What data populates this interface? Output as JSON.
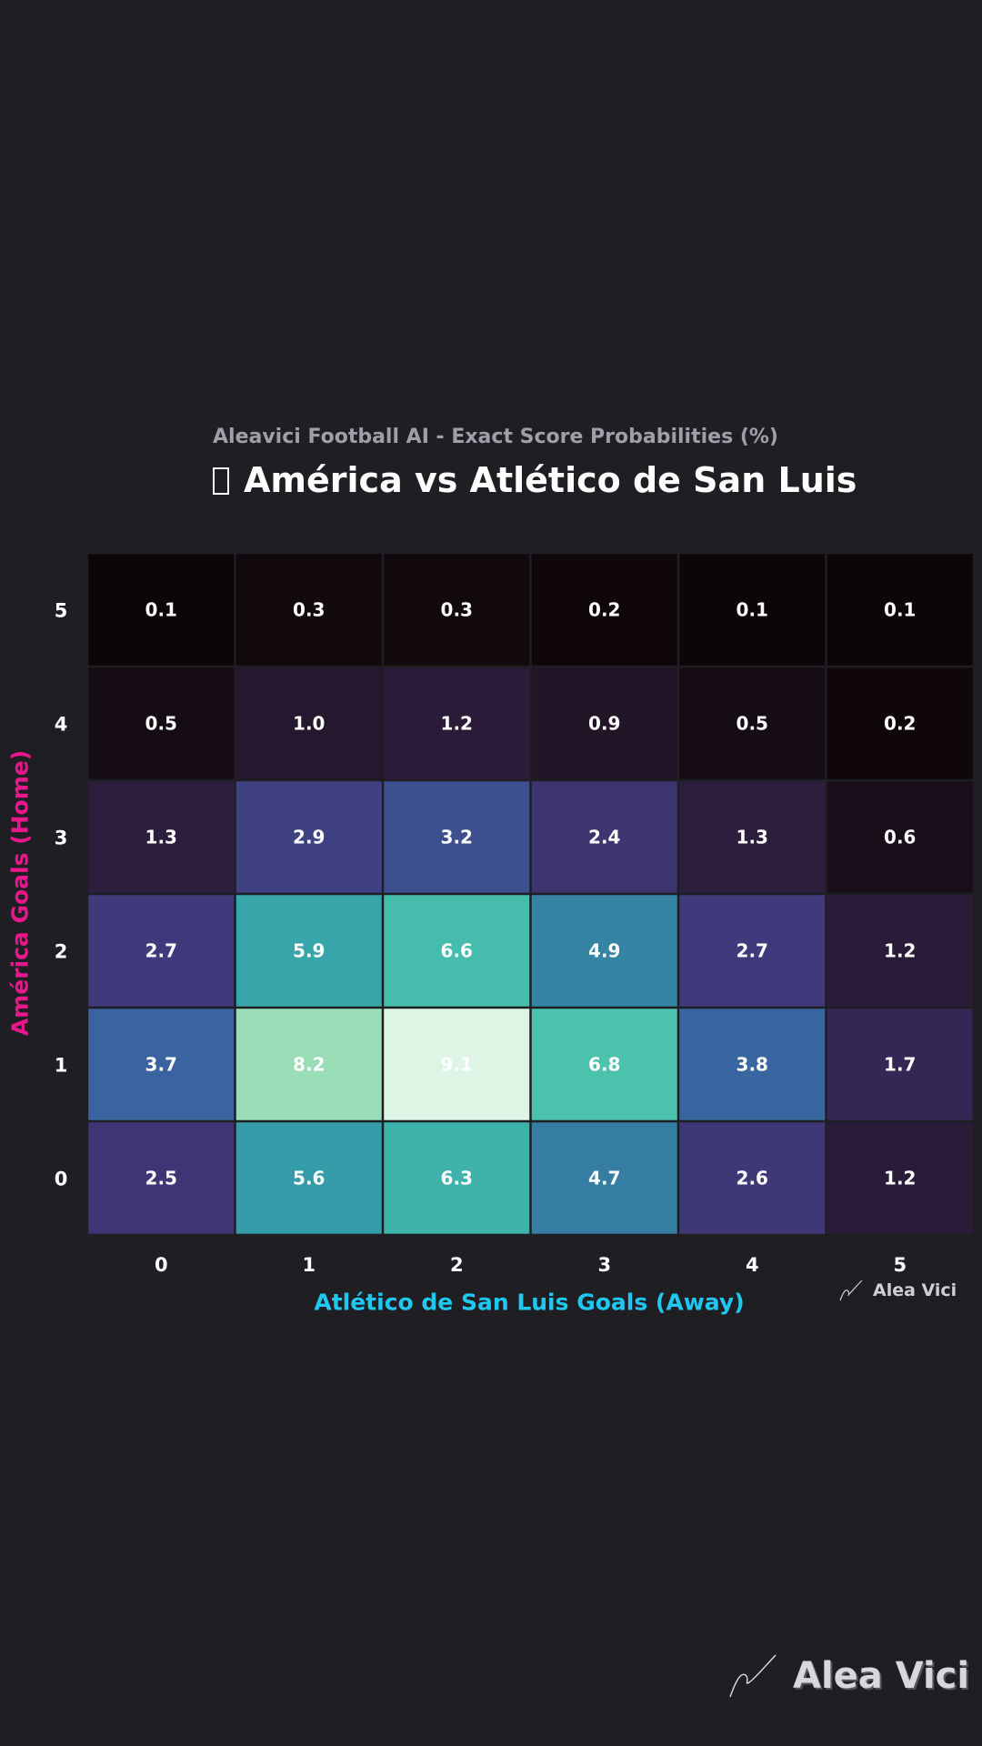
{
  "header": {
    "subtitle": "Aleavici Football AI - Exact Score Probabilities (%)",
    "title": "América vs Atlético de San Luis"
  },
  "colors": {
    "background": "#1f1e23",
    "home_axis": "#e8188c",
    "away_axis": "#1ec8f0",
    "colormap": "mako"
  },
  "chart_data": {
    "type": "heatmap",
    "title": "América vs Atlético de San Luis",
    "subtitle": "Aleavici Football AI - Exact Score Probabilities (%)",
    "xlabel": "Atlético de San Luis Goals (Away)",
    "ylabel": "América Goals (Home)",
    "x": [
      "0",
      "1",
      "2",
      "3",
      "4",
      "5"
    ],
    "y": [
      "0",
      "1",
      "2",
      "3",
      "4",
      "5"
    ],
    "values": [
      [
        2.5,
        5.6,
        6.3,
        4.7,
        2.6,
        1.2
      ],
      [
        3.7,
        8.2,
        9.1,
        6.8,
        3.8,
        1.7
      ],
      [
        2.7,
        5.9,
        6.6,
        4.9,
        2.7,
        1.2
      ],
      [
        1.3,
        2.9,
        3.2,
        2.4,
        1.3,
        0.6
      ],
      [
        0.5,
        1.0,
        1.2,
        0.9,
        0.5,
        0.2
      ],
      [
        0.1,
        0.3,
        0.3,
        0.2,
        0.1,
        0.1
      ]
    ],
    "value_labels": [
      [
        "2.5",
        "5.6",
        "6.3",
        "4.7",
        "2.6",
        "1.2"
      ],
      [
        "3.7",
        "8.2",
        "9.1",
        "6.8",
        "3.8",
        "1.7"
      ],
      [
        "2.7",
        "5.9",
        "6.6",
        "4.9",
        "2.7",
        "1.2"
      ],
      [
        "1.3",
        "2.9",
        "3.2",
        "2.4",
        "1.3",
        "0.6"
      ],
      [
        "0.5",
        "1.0",
        "1.2",
        "0.9",
        "0.5",
        "0.2"
      ],
      [
        "0.1",
        "0.3",
        "0.3",
        "0.2",
        "0.1",
        "0.1"
      ]
    ],
    "legend": "none",
    "grid": false
  },
  "branding": {
    "small_logo_text": "Alea Vici",
    "large_logo_text": "Alea Vici"
  }
}
